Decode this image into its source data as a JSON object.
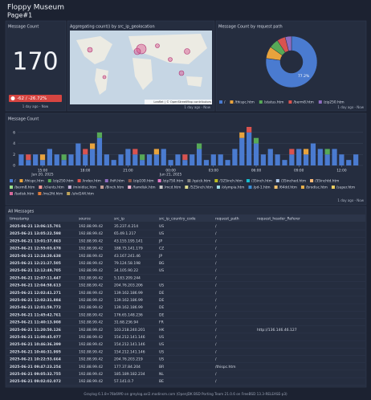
{
  "header": {
    "title": "Floppy Museum",
    "subtitle": "Page#1"
  },
  "message_count": {
    "title": "Message Count",
    "value": 170,
    "delta_label": "-62 / -26.72%",
    "time_range": "1 day ago - Now"
  },
  "map": {
    "title": "Aggregating count() by src_ip_geolocation",
    "attribution": "Leaflet | © OpenStreetMap contributors",
    "time_range": "1 day ago - Now"
  },
  "chart_data": [
    {
      "type": "pie",
      "title": "Message Count by request path",
      "time_range": "1 day ago - Now",
      "categories": [
        "/",
        "/thispc.htm",
        "/status.htm",
        "/berm8.htm",
        "/zip250.htm"
      ],
      "values": [
        77.2,
        7.6,
        5.9,
        5.3,
        4.0
      ],
      "value_labels": [
        "77.2%",
        null,
        null,
        null,
        null
      ],
      "colors": [
        "#4a7bd0",
        "#e8a33d",
        "#57a957",
        "#d9534f",
        "#8e6cc0"
      ]
    },
    {
      "type": "bar",
      "stacked": true,
      "title": "Message Count",
      "time_range": "1 day ago - Now",
      "x": [
        13.5,
        14,
        14.5,
        15,
        15.5,
        16,
        16.5,
        17,
        17.5,
        18,
        18.5,
        19,
        19.5,
        20,
        20.5,
        21,
        21.5,
        22,
        22.5,
        23,
        23.5,
        24,
        24.5,
        25,
        25.5,
        26,
        26.5,
        27,
        27.5,
        28,
        28.5,
        29,
        29.5,
        30,
        30.5,
        31,
        31.5,
        32,
        32.5,
        33,
        33.5,
        34,
        34.5,
        35,
        35.5,
        36,
        36.5,
        37
      ],
      "xlim": [
        13.25,
        37.5
      ],
      "xticks": [
        {
          "value": 15,
          "label": "15:00",
          "date": "Jun 20, 2025"
        },
        {
          "value": 18,
          "label": "18:00"
        },
        {
          "value": 21,
          "label": "21:00"
        },
        {
          "value": 24,
          "label": "00:00",
          "date": "Jun 21, 2025"
        },
        {
          "value": 27,
          "label": "03:00"
        },
        {
          "value": 30,
          "label": "06:00"
        },
        {
          "value": 33,
          "label": "09:00"
        },
        {
          "value": 36,
          "label": "12:00"
        }
      ],
      "ylim": [
        0,
        7
      ],
      "yticks": [
        0,
        2,
        4,
        6
      ],
      "grid": true,
      "series": [
        {
          "name": "/",
          "color": "#4a7bd0",
          "values": [
            2,
            1,
            2,
            1,
            3,
            2,
            1,
            2,
            4,
            2,
            3,
            5,
            2,
            1,
            2,
            3,
            2,
            1,
            2,
            2,
            3,
            1,
            2,
            1,
            2,
            3,
            1,
            2,
            2,
            1,
            3,
            5,
            6,
            4,
            2,
            3,
            2,
            1,
            2,
            3,
            2,
            4,
            3,
            2,
            3,
            2,
            1,
            2
          ]
        },
        {
          "name": "/thispc.htm",
          "color": "#e8a33d",
          "values": [
            0,
            0,
            0,
            1,
            0,
            0,
            0,
            0,
            0,
            0,
            1,
            0,
            0,
            0,
            0,
            0,
            0,
            0,
            0,
            1,
            0,
            0,
            0,
            0,
            0,
            0,
            0,
            0,
            0,
            0,
            0,
            1,
            0,
            0,
            0,
            0,
            0,
            0,
            0,
            0,
            1,
            0,
            0,
            0,
            0,
            0,
            0,
            0
          ]
        },
        {
          "name": "/zip250.htm",
          "color": "#57a957",
          "values": [
            0,
            0,
            0,
            0,
            0,
            0,
            1,
            0,
            0,
            0,
            0,
            1,
            0,
            0,
            0,
            0,
            0,
            1,
            0,
            0,
            0,
            0,
            0,
            0,
            0,
            1,
            0,
            0,
            0,
            0,
            0,
            0,
            0,
            1,
            0,
            0,
            0,
            0,
            0,
            0,
            0,
            0,
            0,
            1,
            0,
            0,
            0,
            0
          ]
        },
        {
          "name": "/index.htm",
          "color": "#d9534f",
          "values": [
            0,
            1,
            0,
            0,
            0,
            0,
            0,
            0,
            0,
            1,
            0,
            0,
            0,
            0,
            0,
            0,
            1,
            0,
            0,
            0,
            0,
            0,
            0,
            1,
            0,
            0,
            0,
            0,
            0,
            0,
            0,
            0,
            1,
            0,
            0,
            0,
            0,
            0,
            1,
            0,
            0,
            0,
            0,
            0,
            0,
            0,
            0,
            0
          ]
        }
      ],
      "more_legend": [
        {
          "name": "/hifi.htm",
          "color": "#8e6cc0"
        },
        {
          "name": "/zip100.htm",
          "color": "#8c564b"
        },
        {
          "name": "/zip750.htm",
          "color": "#e377c2"
        },
        {
          "name": "/quick.htm",
          "color": "#7f7f7f"
        },
        {
          "name": "/325inch.htm",
          "color": "#bcbd22"
        },
        {
          "name": "/35inch.htm",
          "color": "#17becf"
        },
        {
          "name": "/35inched.htm",
          "color": "#aec7e8"
        },
        {
          "name": "/35inchtd.htm",
          "color": "#ffbb78"
        },
        {
          "name": "/berm8.htm",
          "color": "#98df8a"
        },
        {
          "name": "/clients.htm",
          "color": "#ff9896"
        },
        {
          "name": "/minidisc.htm",
          "color": "#c5b0d5"
        },
        {
          "name": "/8inch.htm",
          "color": "#c49c94"
        },
        {
          "name": "/famdisk.htm",
          "color": "#f7b6d2"
        },
        {
          "name": "/mcd.htm",
          "color": "#c7c7c7"
        },
        {
          "name": "/525inch.htm",
          "color": "#dbdb8d"
        },
        {
          "name": "/olympia.htm",
          "color": "#9edae5"
        },
        {
          "name": "/pd-1.htm",
          "color": "#3a8fd8"
        },
        {
          "name": "/64dd.htm",
          "color": "#f5c26b"
        },
        {
          "name": "/brodisc.htm",
          "color": "#e8b04a"
        },
        {
          "name": "/super.htm",
          "color": "#f0d060"
        },
        {
          "name": "/tadisk.htm",
          "color": "#d66a9b"
        },
        {
          "name": "/ms2fd.htm",
          "color": "#e07b39"
        },
        {
          "name": "/uhd144.htm",
          "color": "#bfa45a"
        }
      ]
    }
  ],
  "table": {
    "title": "All Messages",
    "columns": [
      "timestamp",
      "source",
      "src_ip",
      "src_ip_country_code",
      "request_path",
      "request_header_Referer"
    ],
    "rows": [
      [
        "2025-06-21 13:06:15.701",
        "192.88.99.42",
        "35.237.4.214",
        "US",
        "/",
        null
      ],
      [
        "2025-06-21 13:05:22.598",
        "192.88.99.42",
        "65.49.1.217",
        "US",
        "/",
        null
      ],
      [
        "2025-06-21 13:01:37.863",
        "192.88.99.42",
        "43.155.195.141",
        "JP",
        "/",
        null
      ],
      [
        "2025-06-21 12:55:03.678",
        "192.88.99.42",
        "188.75.141.179",
        "CZ",
        "/",
        null
      ],
      [
        "2025-06-21 12:24:20.638",
        "192.88.99.42",
        "43.167.241.46",
        "JP",
        "/",
        null
      ],
      [
        "2025-06-21 12:21:27.505",
        "192.88.99.42",
        "79.124.58.198",
        "BG",
        "/",
        null
      ],
      [
        "2025-06-21 12:12:49.705",
        "192.88.99.42",
        "34.105.90.22",
        "US",
        "/",
        null
      ],
      [
        "2025-06-21 12:07:11.447",
        "192.88.99.42",
        "5.183.209.244",
        null,
        "/",
        null
      ],
      [
        "2025-06-21 12:04:58.613",
        "192.88.99.42",
        "204.76.203.206",
        "US",
        "/",
        null
      ],
      [
        "2025-06-21 12:02:41.271",
        "192.88.99.42",
        "139.162.186.99",
        "DE",
        "/",
        null
      ],
      [
        "2025-06-21 12:02:31.884",
        "192.88.99.42",
        "139.162.186.99",
        "DE",
        "/",
        null
      ],
      [
        "2025-06-21 12:01:59.772",
        "192.88.99.42",
        "139.162.186.99",
        "DE",
        "/",
        null
      ],
      [
        "2025-06-21 11:45:42.761",
        "192.88.99.42",
        "176.65.148.236",
        "DE",
        "/",
        null
      ],
      [
        "2025-06-21 11:40:13.908",
        "192.88.99.42",
        "31.68.236.94",
        "FR",
        "/",
        null
      ],
      [
        "2025-06-21 11:20:50.126",
        "192.88.99.42",
        "103.218.240.201",
        "HK",
        "/",
        "http://136.146.46.127"
      ],
      [
        "2025-06-21 11:00:45.077",
        "192.88.99.42",
        "154.212.141.146",
        "US",
        "/",
        null
      ],
      [
        "2025-06-21 10:46:36.399",
        "192.88.99.42",
        "154.212.141.146",
        "US",
        "/",
        null
      ],
      [
        "2025-06-21 10:46:31.995",
        "192.88.99.42",
        "154.212.141.146",
        "US",
        "/",
        null
      ],
      [
        "2025-06-21 10:22:53.664",
        "192.88.99.42",
        "204.76.203.219",
        "US",
        "/",
        null
      ],
      [
        "2025-06-21 09:47:23.254",
        "192.88.99.42",
        "177.37.84.204",
        "BR",
        "/thispc.htm",
        null
      ],
      [
        "2025-06-21 09:05:32.755",
        "192.88.99.42",
        "185.189.182.234",
        "NL",
        "/",
        null
      ],
      [
        "2025-06-21 09:02:02.072",
        "192.88.99.42",
        "57.141.0.7",
        "BE",
        "/",
        null
      ]
    ]
  },
  "footer": "Graylog 6.1.8+76b69f0 on greylog.oxl2.modinsm.com (OpenJDK BSD Porting Team 21.0.6 on FreeBSD 13.3-RELEASE-p3)"
}
